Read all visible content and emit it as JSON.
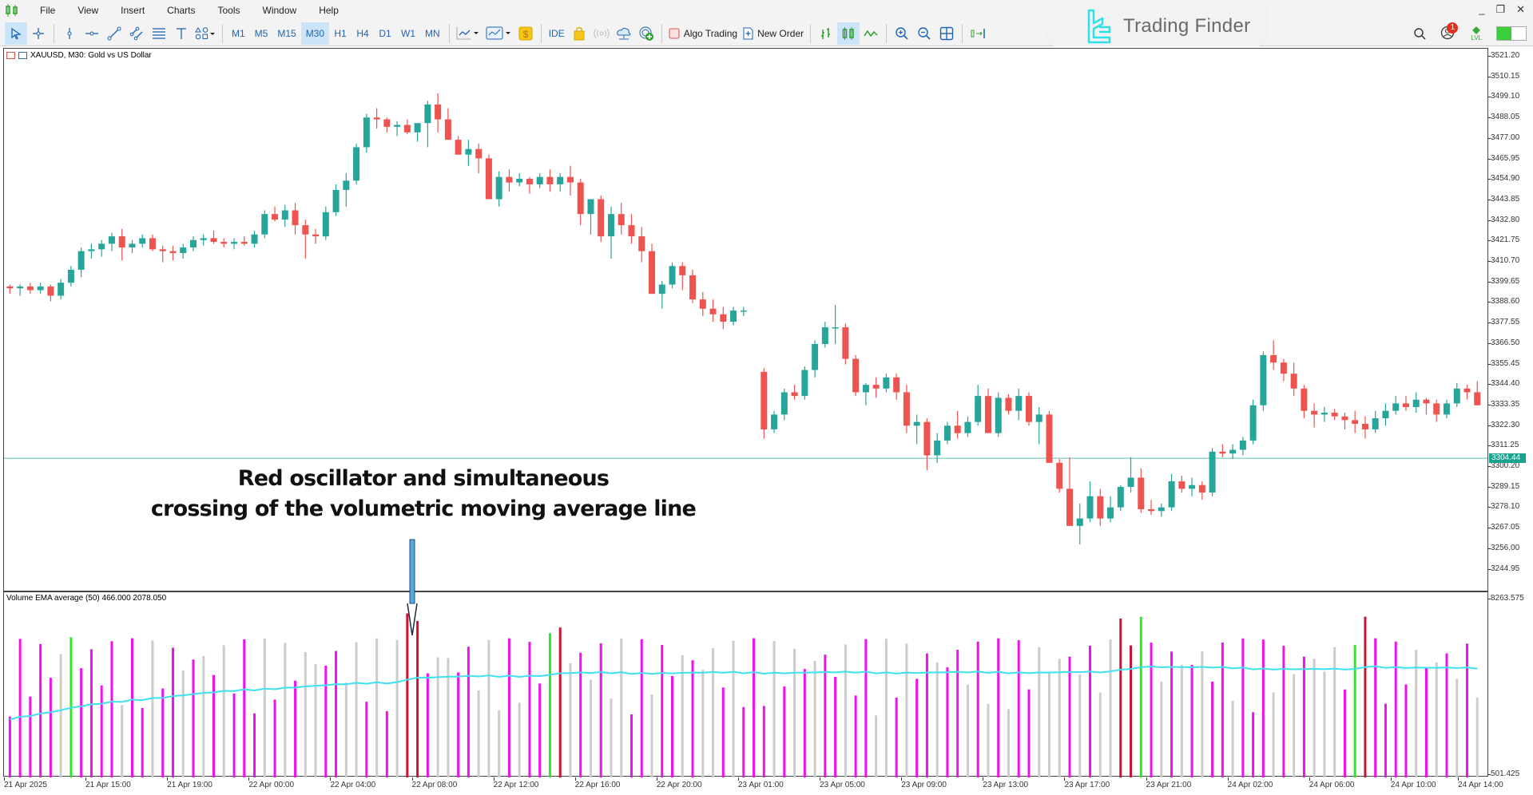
{
  "menu": {
    "items": [
      "File",
      "View",
      "Insert",
      "Charts",
      "Tools",
      "Window",
      "Help"
    ],
    "window_controls": [
      "_",
      "❐",
      "✕"
    ]
  },
  "toolbar": {
    "drawing_tools": [
      "cursor-icon",
      "crosshair-icon",
      "vertical-line-icon",
      "horizontal-line-icon",
      "trendline-icon",
      "channel-icon",
      "fibonacci-icon",
      "text-icon",
      "shapes-icon"
    ],
    "timeframes": [
      "M1",
      "M5",
      "M15",
      "M30",
      "H1",
      "H4",
      "D1",
      "W1",
      "MN"
    ],
    "selected_timeframe": "M30",
    "ide_label": "IDE",
    "algo_trading_label": "Algo Trading",
    "new_order_label": "New Order",
    "notification_count": "1",
    "lvl_label": "LVL"
  },
  "brand": {
    "name": "Trading Finder"
  },
  "chart": {
    "title": "XAUUSD, M30:  Gold vs US Dollar",
    "indicator_title": "Volume EMA average (50) 466.000 2078.050",
    "current_price": "3304.44",
    "colors": {
      "bull": "#26a69a",
      "bear": "#ef5350",
      "ema": "#3fe0f0",
      "vol_magenta": "#ee11ee",
      "vol_gray": "#cccccc",
      "vol_green": "#22ee22",
      "vol_red": "#cc1133",
      "price_line": "#5bbfb5"
    },
    "annotation": {
      "line1": "Red oscillator and simultaneous",
      "line2": "crossing of the volumetric moving average line"
    }
  },
  "chart_data": {
    "type": "candlestick+volume",
    "symbol": "XAUUSD",
    "timeframe": "M30",
    "price_axis": [
      "3521.20",
      "3510.15",
      "3499.10",
      "3488.05",
      "3477.00",
      "3465.95",
      "3454.90",
      "3443.85",
      "3432.80",
      "3421.75",
      "3410.70",
      "3399.65",
      "3388.60",
      "3377.55",
      "3366.50",
      "3355.45",
      "3344.40",
      "3333.35",
      "3322.30",
      "3311.25",
      "3300.20",
      "3289.15",
      "3278.10",
      "3267.05",
      "3256.00",
      "3244.95"
    ],
    "volume_axis": [
      "8263.575",
      "501.425"
    ],
    "time_axis": [
      "21 Apr 2025",
      "21 Apr 15:00",
      "21 Apr 19:00",
      "22 Apr 00:00",
      "22 Apr 04:00",
      "22 Apr 08:00",
      "22 Apr 12:00",
      "22 Apr 16:00",
      "22 Apr 20:00",
      "23 Apr 01:00",
      "23 Apr 05:00",
      "23 Apr 09:00",
      "23 Apr 13:00",
      "23 Apr 17:00",
      "23 Apr 21:00",
      "24 Apr 02:00",
      "24 Apr 06:00",
      "24 Apr 10:00",
      "24 Apr 14:00"
    ],
    "current_price": 3304.44,
    "candles": [
      [
        3397,
        3398,
        3393,
        3396
      ],
      [
        3396,
        3398,
        3392,
        3397
      ],
      [
        3397,
        3399,
        3393,
        3395
      ],
      [
        3395,
        3399,
        3393,
        3397
      ],
      [
        3397,
        3398,
        3389,
        3392
      ],
      [
        3392,
        3401,
        3390,
        3399
      ],
      [
        3399,
        3408,
        3397,
        3406
      ],
      [
        3406,
        3418,
        3402,
        3416
      ],
      [
        3416,
        3420,
        3412,
        3417
      ],
      [
        3417,
        3422,
        3413,
        3420
      ],
      [
        3420,
        3426,
        3416,
        3424
      ],
      [
        3424,
        3428,
        3411,
        3418
      ],
      [
        3418,
        3422,
        3415,
        3420
      ],
      [
        3420,
        3425,
        3418,
        3423
      ],
      [
        3423,
        3425,
        3416,
        3417
      ],
      [
        3417,
        3419,
        3410,
        3416
      ],
      [
        3416,
        3419,
        3411,
        3415
      ],
      [
        3415,
        3420,
        3412,
        3418
      ],
      [
        3418,
        3424,
        3416,
        3422
      ],
      [
        3422,
        3425,
        3419,
        3423
      ],
      [
        3423,
        3427,
        3420,
        3421
      ],
      [
        3421,
        3423,
        3418,
        3420
      ],
      [
        3420,
        3423,
        3417,
        3421
      ],
      [
        3421,
        3424,
        3419,
        3420
      ],
      [
        3420,
        3427,
        3418,
        3425
      ],
      [
        3425,
        3438,
        3423,
        3436
      ],
      [
        3436,
        3440,
        3432,
        3433
      ],
      [
        3433,
        3441,
        3429,
        3438
      ],
      [
        3438,
        3442,
        3425,
        3430
      ],
      [
        3430,
        3433,
        3412,
        3425
      ],
      [
        3425,
        3428,
        3420,
        3424
      ],
      [
        3424,
        3440,
        3422,
        3437
      ],
      [
        3437,
        3452,
        3435,
        3449
      ],
      [
        3449,
        3458,
        3440,
        3454
      ],
      [
        3454,
        3474,
        3452,
        3472
      ],
      [
        3472,
        3490,
        3469,
        3488
      ],
      [
        3488,
        3493,
        3482,
        3487
      ],
      [
        3487,
        3488,
        3480,
        3483
      ],
      [
        3483,
        3486,
        3478,
        3484
      ],
      [
        3484,
        3487,
        3479,
        3480
      ],
      [
        3480,
        3484,
        3475,
        3485
      ],
      [
        3485,
        3497,
        3472,
        3495
      ],
      [
        3495,
        3501,
        3480,
        3487
      ],
      [
        3487,
        3493,
        3476,
        3476
      ],
      [
        3476,
        3478,
        3468,
        3468
      ],
      [
        3468,
        3476,
        3462,
        3471
      ],
      [
        3471,
        3474,
        3458,
        3466
      ],
      [
        3466,
        3468,
        3444,
        3444
      ],
      [
        3444,
        3459,
        3440,
        3456
      ],
      [
        3456,
        3460,
        3448,
        3453
      ],
      [
        3453,
        3458,
        3451,
        3455
      ],
      [
        3455,
        3456,
        3447,
        3452
      ],
      [
        3452,
        3458,
        3450,
        3456
      ],
      [
        3456,
        3460,
        3448,
        3452
      ],
      [
        3452,
        3458,
        3448,
        3456
      ],
      [
        3456,
        3462,
        3446,
        3453
      ],
      [
        3453,
        3455,
        3430,
        3436
      ],
      [
        3436,
        3441,
        3425,
        3444
      ],
      [
        3444,
        3446,
        3421,
        3424
      ],
      [
        3424,
        3440,
        3412,
        3436
      ],
      [
        3436,
        3442,
        3425,
        3430
      ],
      [
        3430,
        3436,
        3420,
        3424
      ],
      [
        3424,
        3429,
        3410,
        3416
      ],
      [
        3416,
        3420,
        3393,
        3393
      ],
      [
        3393,
        3400,
        3385,
        3398
      ],
      [
        3398,
        3410,
        3396,
        3408
      ],
      [
        3408,
        3410,
        3395,
        3403
      ],
      [
        3403,
        3406,
        3388,
        3390
      ],
      [
        3390,
        3394,
        3381,
        3385
      ],
      [
        3385,
        3390,
        3378,
        3382
      ],
      [
        3382,
        3386,
        3374,
        3378
      ],
      [
        3378,
        3386,
        3376,
        3384
      ],
      [
        3384,
        3386,
        3381,
        3384
      ],
      null,
      [
        3351,
        3353,
        3315,
        3320
      ],
      [
        3320,
        3330,
        3318,
        3328
      ],
      [
        3328,
        3342,
        3325,
        3340
      ],
      [
        3340,
        3344,
        3336,
        3338
      ],
      [
        3338,
        3354,
        3336,
        3352
      ],
      [
        3352,
        3368,
        3348,
        3366
      ],
      [
        3366,
        3378,
        3364,
        3375
      ],
      [
        3375,
        3387,
        3366,
        3375
      ],
      [
        3375,
        3377,
        3355,
        3358
      ],
      [
        3358,
        3360,
        3338,
        3340
      ],
      [
        3340,
        3345,
        3333,
        3344
      ],
      [
        3344,
        3348,
        3337,
        3342
      ],
      [
        3342,
        3350,
        3340,
        3348
      ],
      [
        3348,
        3350,
        3336,
        3340
      ],
      [
        3340,
        3344,
        3318,
        3322
      ],
      [
        3322,
        3328,
        3312,
        3324
      ],
      [
        3324,
        3326,
        3298,
        3306
      ],
      [
        3306,
        3318,
        3302,
        3314
      ],
      [
        3314,
        3324,
        3312,
        3322
      ],
      [
        3322,
        3330,
        3315,
        3318
      ],
      [
        3318,
        3327,
        3316,
        3324
      ],
      [
        3324,
        3344,
        3322,
        3338
      ],
      [
        3338,
        3342,
        3318,
        3318
      ],
      [
        3318,
        3340,
        3316,
        3337
      ],
      [
        3337,
        3339,
        3328,
        3330
      ],
      [
        3330,
        3342,
        3325,
        3338
      ],
      [
        3338,
        3340,
        3322,
        3324
      ],
      [
        3324,
        3332,
        3312,
        3328
      ],
      [
        3328,
        3330,
        3302,
        3302
      ],
      [
        3302,
        3304,
        3286,
        3288
      ],
      [
        3288,
        3305,
        3270,
        3268
      ],
      [
        3268,
        3280,
        3258,
        3272
      ],
      [
        3272,
        3292,
        3270,
        3284
      ],
      [
        3284,
        3288,
        3268,
        3272
      ],
      [
        3272,
        3284,
        3270,
        3278
      ],
      [
        3278,
        3290,
        3276,
        3289
      ],
      [
        3289,
        3305,
        3286,
        3294
      ],
      [
        3294,
        3299,
        3275,
        3277
      ],
      [
        3277,
        3282,
        3274,
        3276
      ],
      [
        3276,
        3280,
        3273,
        3278
      ],
      [
        3278,
        3296,
        3276,
        3292
      ],
      [
        3292,
        3295,
        3286,
        3288
      ],
      [
        3288,
        3294,
        3284,
        3290
      ],
      [
        3290,
        3292,
        3282,
        3286
      ],
      [
        3286,
        3310,
        3284,
        3308
      ],
      [
        3308,
        3312,
        3305,
        3307
      ],
      [
        3307,
        3312,
        3304,
        3309
      ],
      [
        3309,
        3316,
        3306,
        3314
      ],
      [
        3314,
        3336,
        3312,
        3333
      ],
      [
        3333,
        3362,
        3330,
        3360
      ],
      [
        3360,
        3368,
        3352,
        3356
      ],
      [
        3356,
        3358,
        3346,
        3350
      ],
      [
        3350,
        3356,
        3338,
        3342
      ],
      [
        3342,
        3344,
        3326,
        3330
      ],
      [
        3330,
        3334,
        3321,
        3328
      ],
      [
        3328,
        3332,
        3324,
        3329
      ],
      [
        3329,
        3331,
        3325,
        3327
      ],
      [
        3327,
        3329,
        3320,
        3325
      ],
      [
        3325,
        3330,
        3318,
        3323
      ],
      [
        3323,
        3327,
        3315,
        3320
      ],
      [
        3320,
        3330,
        3318,
        3326
      ],
      [
        3326,
        3334,
        3322,
        3330
      ],
      [
        3330,
        3338,
        3328,
        3334
      ],
      [
        3334,
        3338,
        3330,
        3332
      ],
      [
        3332,
        3340,
        3329,
        3336
      ],
      [
        3336,
        3337,
        3328,
        3334
      ],
      [
        3334,
        3336,
        3324,
        3328
      ],
      [
        3328,
        3336,
        3326,
        3334
      ],
      [
        3334,
        3345,
        3332,
        3342
      ],
      [
        3342,
        3344,
        3336,
        3340
      ],
      [
        3340,
        3346,
        3333,
        3333
      ]
    ],
    "volume": {
      "ema_period": 50,
      "ema_value": 2078.05,
      "current_value": 466.0
    }
  }
}
